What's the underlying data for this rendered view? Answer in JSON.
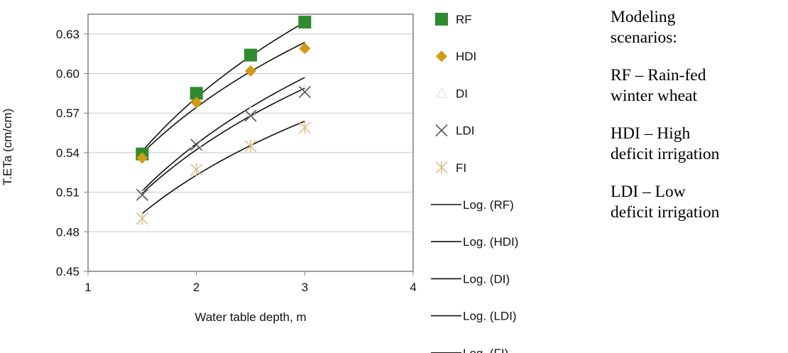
{
  "chart_data": {
    "type": "scatter",
    "title": "",
    "xlabel": "Water table depth, m",
    "ylabel": "T.ETa (cm/cm)",
    "xlim": [
      1,
      4
    ],
    "ylim": [
      0.45,
      0.645
    ],
    "x_ticks": [
      "1",
      "2",
      "3",
      "4"
    ],
    "y_ticks": [
      "0.45",
      "0.48",
      "0.51",
      "0.54",
      "0.57",
      "0.60",
      "0.63"
    ],
    "x": [
      1.5,
      2,
      2.5,
      3
    ],
    "grid": "horizontal",
    "legend_position": "right",
    "series": [
      {
        "name": "RF",
        "marker": "square",
        "color": "#2e8b2e",
        "values": [
          0.539,
          0.585,
          0.614,
          0.639
        ]
      },
      {
        "name": "HDI",
        "marker": "diamond",
        "color": "#d49a10",
        "values": [
          0.536,
          0.578,
          0.602,
          0.619
        ]
      },
      {
        "name": "DI",
        "marker": "triangle",
        "color": "#dddddd",
        "values": [
          0.509,
          0.547,
          0.571,
          0.588
        ]
      },
      {
        "name": "LDI",
        "marker": "x",
        "color": "#555555",
        "values": [
          0.508,
          0.546,
          0.568,
          0.586
        ]
      },
      {
        "name": "FI",
        "marker": "asterisk",
        "color": "#e0bf8f",
        "values": [
          0.49,
          0.527,
          0.545,
          0.559
        ]
      }
    ],
    "trendlines": [
      {
        "name": "Log. (RF)",
        "type": "log",
        "values": [
          0.541,
          0.582,
          0.613,
          0.639
        ]
      },
      {
        "name": "Log. (HDI)",
        "type": "log",
        "values": [
          0.539,
          0.575,
          0.602,
          0.623
        ]
      },
      {
        "name": "Log. (DI)",
        "type": "log",
        "values": [
          0.51,
          0.548,
          0.575,
          0.596
        ]
      },
      {
        "name": "Log. (LDI)",
        "type": "log",
        "values": [
          0.508,
          0.544,
          0.568,
          0.588
        ]
      },
      {
        "name": "Log. (FI)",
        "type": "log",
        "values": [
          0.493,
          0.524,
          0.546,
          0.563
        ]
      }
    ]
  },
  "notes": {
    "heading": [
      "Modeling",
      "scenarios:"
    ],
    "items": [
      [
        "RF – Rain-fed",
        "winter wheat"
      ],
      [
        "HDI – High",
        "deficit irrigation"
      ],
      [
        "LDI –  Low",
        "deficit irrigation"
      ]
    ]
  }
}
